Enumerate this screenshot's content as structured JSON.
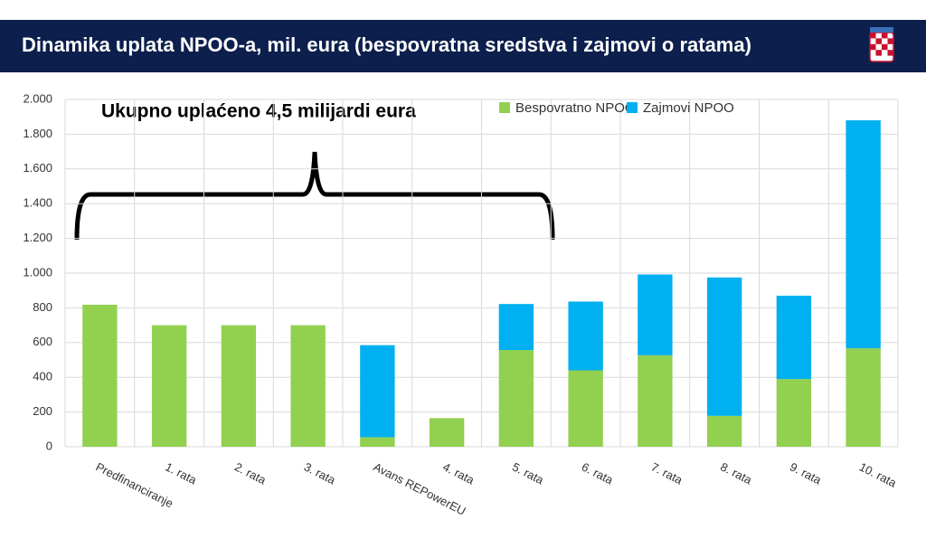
{
  "chart_data": {
    "type": "stacked_bar",
    "title": "Dinamika uplata NPOO-a, mil. eura (bespovratna sredstva i zajmovi o ratama)",
    "annotation": "Ukupno uplaćeno 4,5 milijardi eura",
    "categories": [
      "Predfinanciranje",
      "1. rata",
      "2. rata",
      "3. rata",
      "Avans REPowerEU",
      "4. rata",
      "5. rata",
      "6. rata",
      "7. rata",
      "8. rata",
      "9. rata",
      "10. rata"
    ],
    "series": [
      {
        "name": "Bespovratno NPOO",
        "color": "#92d050",
        "values": [
          818,
          700,
          700,
          700,
          55,
          165,
          557,
          440,
          527,
          178,
          390,
          567
        ]
      },
      {
        "name": "Zajmovi NPOO",
        "color": "#00b0f0",
        "values": [
          null,
          null,
          null,
          null,
          530,
          null,
          265,
          396,
          465,
          797,
          480,
          1313
        ]
      }
    ],
    "ylim": [
      0,
      2000
    ],
    "yticks": [
      0,
      200,
      400,
      600,
      800,
      {
        "value": 1000,
        "label": "1.000"
      },
      {
        "value": 1200,
        "label": "1.200"
      },
      {
        "value": 1400,
        "label": "1.400"
      },
      {
        "value": 1600,
        "label": "1.600"
      },
      {
        "value": 1800,
        "label": "1.800"
      },
      {
        "value": 2000,
        "label": "2.000"
      }
    ],
    "grid": true,
    "legend": "top"
  }
}
